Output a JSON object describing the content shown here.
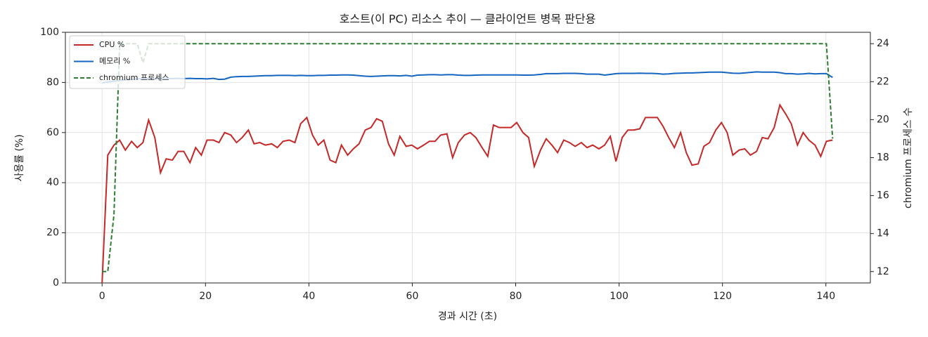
{
  "chart_data": {
    "type": "line",
    "title": "호스트(이 PC) 리소스 추이 — 클라이언트 병목 판단용",
    "x_label": "경과 시간 (초)",
    "y_label": "사용률 (%)",
    "y2_label": "chromium 프로세스 수",
    "x": [
      0,
      1.1,
      2.3,
      3.4,
      4.5,
      5.7,
      6.8,
      7.9,
      9.0,
      10.2,
      11.3,
      12.4,
      13.6,
      14.7,
      15.8,
      17.0,
      18.1,
      19.2,
      20.3,
      21.5,
      22.6,
      23.7,
      24.9,
      26.0,
      27.1,
      28.3,
      29.4,
      30.5,
      31.6,
      32.8,
      33.9,
      35.0,
      36.2,
      37.3,
      38.4,
      39.6,
      40.7,
      41.8,
      42.9,
      44.1,
      45.2,
      46.3,
      47.5,
      48.6,
      49.7,
      50.9,
      52.0,
      53.1,
      54.2,
      55.4,
      56.5,
      57.6,
      58.8,
      59.9,
      61.0,
      62.2,
      63.3,
      64.4,
      65.5,
      66.7,
      67.8,
      68.9,
      70.1,
      71.2,
      72.3,
      73.5,
      74.6,
      75.7,
      76.8,
      78.0,
      79.1,
      80.2,
      81.4,
      82.5,
      83.6,
      84.8,
      85.9,
      87.0,
      88.1,
      89.3,
      90.4,
      91.5,
      92.7,
      93.8,
      94.9,
      96.1,
      97.2,
      98.3,
      99.4,
      100.6,
      101.7,
      102.8,
      104.0,
      105.1,
      106.2,
      107.4,
      108.5,
      109.6,
      110.7,
      111.9,
      113.0,
      114.1,
      115.3,
      116.4,
      117.5,
      118.7,
      119.8,
      120.9,
      122.0,
      123.2,
      124.3,
      125.4,
      126.6,
      127.7,
      128.8,
      130.0,
      131.1,
      132.2,
      133.3,
      134.5,
      135.6,
      136.7,
      137.9,
      139.0,
      140.1,
      141.3
    ],
    "series": [
      {
        "name": "CPU %",
        "color": "#c62828",
        "axis": "y",
        "values": [
          0,
          51,
          55,
          57,
          53,
          56.5,
          54,
          56,
          65,
          58,
          44,
          49.5,
          49,
          52.5,
          52.5,
          48,
          54,
          51,
          57,
          57,
          56,
          60,
          59,
          56,
          58,
          61,
          55.5,
          56,
          55,
          55.5,
          54,
          56.5,
          57,
          56,
          63.5,
          66,
          59,
          55,
          57,
          49,
          48,
          55,
          51,
          53.5,
          55.5,
          61,
          62,
          65.5,
          64.5,
          55.5,
          51,
          58.5,
          54.5,
          55,
          53.5,
          55,
          56.5,
          56.5,
          59,
          59.5,
          50,
          56,
          59,
          60,
          58,
          54,
          50.5,
          63,
          62,
          62,
          62,
          64,
          60,
          58,
          46.5,
          53,
          57.5,
          55,
          52,
          57,
          56,
          54.5,
          56,
          54,
          55,
          53.5,
          55,
          58.5,
          48.5,
          58,
          61,
          61,
          61.5,
          66,
          66,
          66,
          62.5,
          58,
          54,
          60,
          52,
          47,
          47.5,
          54.5,
          56,
          61,
          64,
          60,
          51,
          53,
          53.5,
          51,
          52.5,
          58,
          57.5,
          62,
          71,
          67.5,
          63.5,
          55,
          60,
          57,
          55,
          50.5,
          56.5,
          57
        ]
      },
      {
        "name": "메모리 %",
        "color": "#1565c0",
        "axis": "y",
        "values": [
          79.8,
          80.2,
          80.5,
          80.8,
          81.0,
          81.2,
          81.4,
          81.5,
          81.5,
          81.6,
          81.5,
          81.6,
          81.5,
          81.6,
          81.5,
          81.6,
          81.5,
          81.5,
          81.4,
          81.6,
          81.2,
          81.3,
          82.1,
          82.3,
          82.4,
          82.4,
          82.5,
          82.6,
          82.7,
          82.7,
          82.8,
          82.8,
          82.8,
          82.7,
          82.8,
          82.7,
          82.7,
          82.8,
          82.8,
          82.9,
          82.9,
          83.0,
          83.0,
          82.9,
          82.7,
          82.5,
          82.4,
          82.5,
          82.6,
          82.7,
          82.7,
          82.6,
          82.8,
          82.5,
          82.9,
          83.0,
          83.1,
          83.1,
          83.0,
          83.1,
          83.1,
          82.9,
          82.8,
          82.8,
          82.9,
          83.0,
          83.0,
          83.0,
          83.0,
          83.0,
          83.0,
          83.0,
          82.9,
          82.9,
          83.0,
          83.2,
          83.5,
          83.5,
          83.5,
          83.6,
          83.6,
          83.6,
          83.5,
          83.3,
          83.3,
          83.3,
          82.9,
          83.2,
          83.5,
          83.6,
          83.6,
          83.6,
          83.7,
          83.6,
          83.6,
          83.5,
          83.3,
          83.4,
          83.6,
          83.7,
          83.8,
          83.8,
          83.9,
          84.0,
          84.1,
          84.1,
          84.1,
          83.9,
          83.7,
          83.6,
          83.8,
          84.0,
          84.2,
          84.1,
          84.1,
          84.1,
          83.9,
          83.5,
          83.5,
          83.3,
          83.4,
          83.6,
          83.4,
          83.5,
          83.5,
          82.0
        ]
      },
      {
        "name": "chromium 프로세스",
        "color": "#2e7d32",
        "axis": "y2",
        "linestyle": "dashed",
        "values": [
          12,
          12,
          15,
          24,
          24,
          24,
          24,
          23,
          24,
          24,
          24,
          24,
          24,
          24,
          24,
          24,
          24,
          24,
          24,
          24,
          24,
          24,
          24,
          24,
          24,
          24,
          24,
          24,
          24,
          24,
          24,
          24,
          24,
          24,
          24,
          24,
          24,
          24,
          24,
          24,
          24,
          24,
          24,
          24,
          24,
          24,
          24,
          24,
          24,
          24,
          24,
          24,
          24,
          24,
          24,
          24,
          24,
          24,
          24,
          24,
          24,
          24,
          24,
          24,
          24,
          24,
          24,
          24,
          24,
          24,
          24,
          24,
          24,
          24,
          24,
          24,
          24,
          24,
          24,
          24,
          24,
          24,
          24,
          24,
          24,
          24,
          24,
          24,
          24,
          24,
          24,
          24,
          24,
          24,
          24,
          24,
          24,
          24,
          24,
          24,
          24,
          24,
          24,
          24,
          24,
          24,
          24,
          24,
          24,
          24,
          24,
          24,
          24,
          24,
          24,
          24,
          24,
          24,
          24,
          24,
          24,
          24,
          24,
          24,
          24,
          19
        ]
      }
    ],
    "xlim": [
      -7.1,
      148.6
    ],
    "xticks": [
      0,
      20,
      40,
      60,
      80,
      100,
      120,
      140
    ],
    "ylim": [
      0,
      100
    ],
    "yticks": [
      0,
      20,
      40,
      60,
      80,
      100
    ],
    "y2lim": [
      11.4,
      24.6
    ],
    "y2ticks": [
      12,
      14,
      16,
      18,
      20,
      22,
      24
    ],
    "grid": true,
    "legend": "upper left"
  }
}
